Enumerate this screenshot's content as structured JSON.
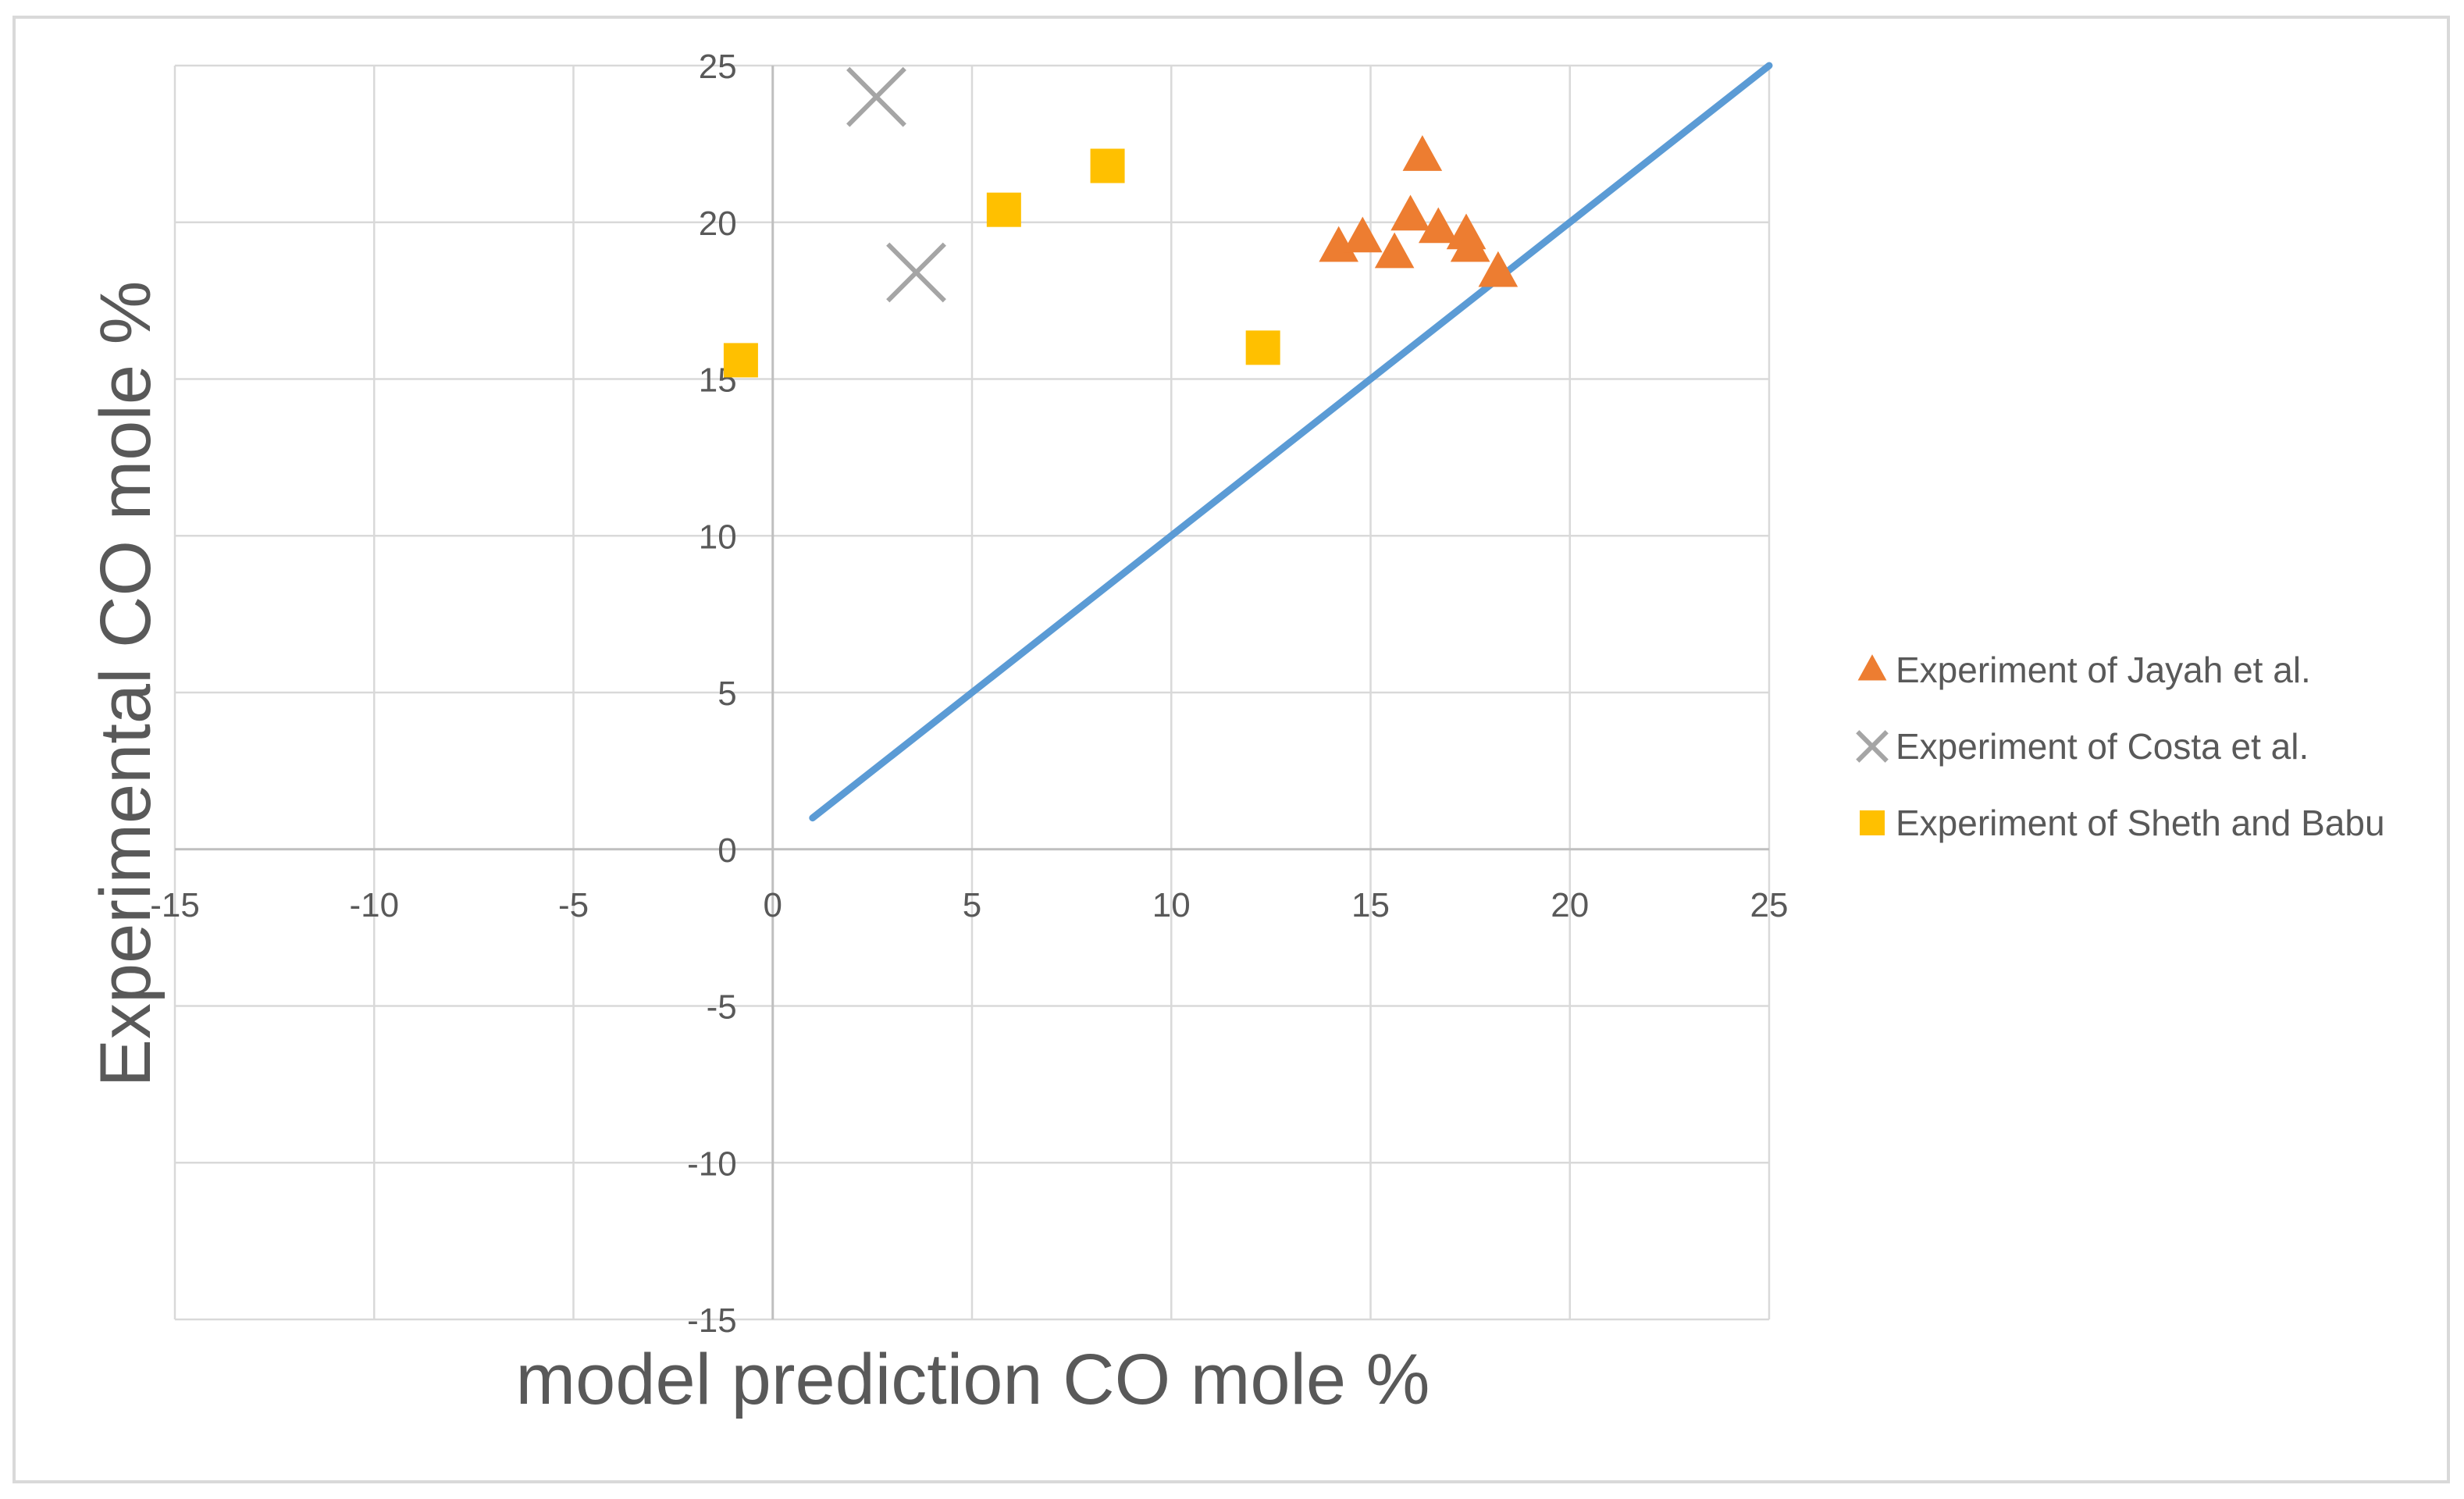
{
  "chart_data": {
    "type": "scatter",
    "title": "",
    "xlabel": "model prediction CO mole %",
    "ylabel": "Experimental CO mole %",
    "xlim": [
      -15,
      25
    ],
    "ylim": [
      -15,
      25
    ],
    "xticks": [
      -15,
      -10,
      -5,
      0,
      5,
      10,
      15,
      20,
      25
    ],
    "yticks": [
      -15,
      -10,
      -5,
      0,
      5,
      10,
      15,
      20,
      25
    ],
    "grid": true,
    "legend_position": "right",
    "reference_line": {
      "x": [
        1,
        25
      ],
      "y": [
        1,
        25
      ],
      "color": "#5B9BD5"
    },
    "series": [
      {
        "name": "Experiment of Jayah et al.",
        "marker": "triangle",
        "color": "#ED7D31",
        "points": [
          [
            16.3,
            22.1
          ],
          [
            14.2,
            19.2
          ],
          [
            14.8,
            19.5
          ],
          [
            16.0,
            20.2
          ],
          [
            16.7,
            19.8
          ],
          [
            17.4,
            19.6
          ],
          [
            17.5,
            19.2
          ],
          [
            15.6,
            19.0
          ],
          [
            18.2,
            18.4
          ]
        ]
      },
      {
        "name": "Experiment of Costa et al.",
        "marker": "x",
        "color": "#A5A5A5",
        "points": [
          [
            2.6,
            24.0
          ],
          [
            3.6,
            18.4
          ]
        ]
      },
      {
        "name": "Experiment of Sheth and Babu",
        "marker": "square",
        "color": "#FFC000",
        "points": [
          [
            -0.8,
            15.6
          ],
          [
            5.8,
            20.4
          ],
          [
            8.4,
            21.8
          ],
          [
            12.3,
            16.0
          ]
        ]
      }
    ]
  }
}
